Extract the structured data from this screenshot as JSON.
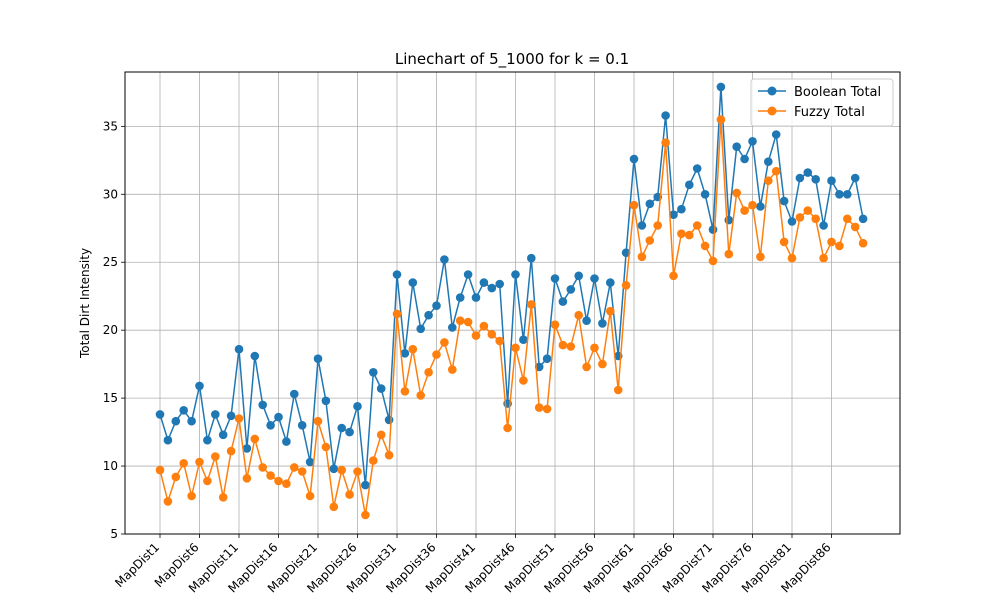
{
  "chart_data": {
    "type": "line",
    "title": "Linechart of 5_1000 for k = 0.1",
    "xlabel": "",
    "ylabel": "Total Dirt Intensity",
    "ylim": [
      5.0,
      39.0
    ],
    "yticks": [
      5,
      10,
      15,
      20,
      25,
      30,
      35
    ],
    "x_count": 90,
    "x_tick_labels": [
      "MapDist1",
      "MapDist6",
      "MapDist11",
      "MapDist16",
      "MapDist21",
      "MapDist26",
      "MapDist31",
      "MapDist36",
      "MapDist41",
      "MapDist46",
      "MapDist51",
      "MapDist56",
      "MapDist61",
      "MapDist66",
      "MapDist71",
      "MapDist76",
      "MapDist81",
      "MapDist86"
    ],
    "grid": true,
    "legend_position": "top-right",
    "series": [
      {
        "name": "Boolean Total",
        "color": "#1f77b4",
        "values": [
          13.8,
          11.9,
          13.3,
          14.1,
          13.3,
          15.9,
          11.9,
          13.8,
          12.3,
          13.7,
          18.6,
          11.3,
          18.1,
          14.5,
          13.0,
          13.6,
          11.8,
          15.3,
          13.0,
          10.3,
          17.9,
          14.8,
          9.8,
          12.8,
          12.5,
          14.4,
          8.6,
          16.9,
          15.7,
          13.4,
          24.1,
          18.3,
          23.5,
          20.1,
          21.1,
          21.8,
          25.2,
          20.2,
          22.4,
          24.1,
          22.4,
          23.5,
          23.1,
          23.4,
          14.6,
          24.1,
          19.3,
          25.3,
          17.3,
          17.9,
          23.8,
          22.1,
          23.0,
          24.0,
          20.7,
          23.8,
          20.5,
          23.5,
          18.1,
          25.7,
          32.6,
          27.7,
          29.3,
          29.8,
          35.8,
          28.5,
          28.9,
          30.7,
          31.9,
          30.0,
          27.4,
          37.9,
          28.1,
          33.5,
          32.6,
          33.9,
          29.1,
          32.4,
          34.4,
          29.5,
          28.0,
          31.2,
          31.6,
          31.1,
          27.7,
          31.0,
          30.0,
          30.0,
          31.2,
          28.2
        ]
      },
      {
        "name": "Fuzzy Total",
        "color": "#ff7f0e",
        "values": [
          9.7,
          7.4,
          9.2,
          10.2,
          7.8,
          10.3,
          8.9,
          10.7,
          7.7,
          11.1,
          13.5,
          9.1,
          12.0,
          9.9,
          9.3,
          8.9,
          8.7,
          9.9,
          9.6,
          7.8,
          13.3,
          11.4,
          7.0,
          9.7,
          7.9,
          9.6,
          6.4,
          10.4,
          12.3,
          10.8,
          21.2,
          15.5,
          18.6,
          15.2,
          16.9,
          18.2,
          19.1,
          17.1,
          20.7,
          20.6,
          19.6,
          20.3,
          19.7,
          19.2,
          12.8,
          18.7,
          16.3,
          21.9,
          14.3,
          14.2,
          20.4,
          18.9,
          18.8,
          21.1,
          17.3,
          18.7,
          17.5,
          21.4,
          15.6,
          23.3,
          29.2,
          25.4,
          26.6,
          27.7,
          33.8,
          24.0,
          27.1,
          27.0,
          27.7,
          26.2,
          25.1,
          35.5,
          25.6,
          30.1,
          28.8,
          29.2,
          25.4,
          31.0,
          31.7,
          26.5,
          25.3,
          28.3,
          28.8,
          28.2,
          25.3,
          26.5,
          26.2,
          28.2,
          27.6,
          26.4
        ]
      }
    ]
  }
}
